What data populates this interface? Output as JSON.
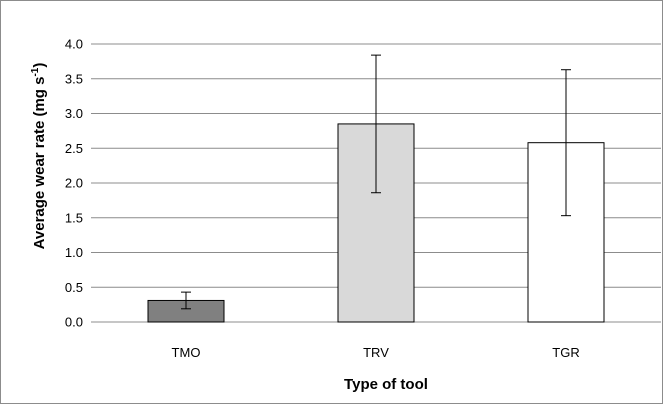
{
  "chart_data": {
    "type": "bar",
    "categories": [
      "TMO",
      "TRV",
      "TGR"
    ],
    "values": [
      0.31,
      2.85,
      2.58
    ],
    "error": [
      0.12,
      0.99,
      1.05
    ],
    "bar_colors": [
      "#808080",
      "#d9d9d9",
      "#ffffff"
    ],
    "xlabel": "Type of tool",
    "ylabel": "Average wear rate (mg s",
    "ylabel_sup": "-1",
    "ylabel_close": ")",
    "ylim": [
      0,
      4.0
    ],
    "yticks": [
      "0.0",
      "0.5",
      "1.0",
      "1.5",
      "2.0",
      "2.5",
      "3.0",
      "3.5",
      "4.0"
    ],
    "grid": true,
    "legend": "none"
  }
}
